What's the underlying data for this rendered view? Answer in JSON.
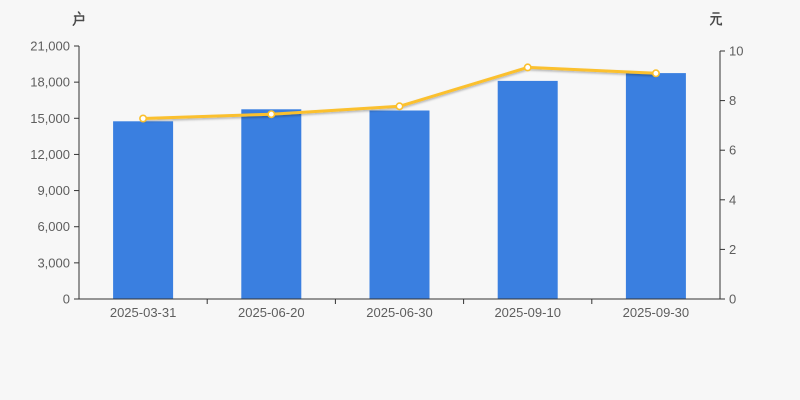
{
  "colors": {
    "background": "#f7f7f7",
    "bar": "#3a7fe0",
    "line": "#fbc02d",
    "marker_fill": "#ffffff",
    "axis_line": "#333333",
    "tick_label": "#5e5e5e",
    "unit_label": "#4a4a4a"
  },
  "chart_data": {
    "type": "bar",
    "title": "",
    "categories": [
      "2025-03-31",
      "2025-06-20",
      "2025-06-30",
      "2025-09-10",
      "2025-09-30"
    ],
    "series": [
      {
        "type": "bar",
        "axis": "left",
        "unit": "户",
        "color": "#3a7fe0",
        "values": [
          14750,
          15750,
          15650,
          18100,
          18750
        ]
      },
      {
        "type": "line",
        "axis": "right",
        "unit": "元",
        "color": "#fbc02d",
        "marker": "empty-circle",
        "marker_fill": "#ffffff",
        "values": [
          7.28,
          7.45,
          7.77,
          9.34,
          9.1
        ]
      }
    ],
    "left_axis": {
      "unit": "户",
      "min": 0,
      "max": 21000,
      "interval": 3000,
      "tick_labels": [
        "0",
        "3,000",
        "6,000",
        "9,000",
        "12,000",
        "15,000",
        "18,000",
        "21,000"
      ]
    },
    "right_axis": {
      "unit": "元",
      "min": 0,
      "max": 10,
      "interval": 2,
      "tick_labels": [
        "0",
        "2",
        "4",
        "6",
        "8",
        "10"
      ]
    },
    "grid": false,
    "legend": false
  }
}
